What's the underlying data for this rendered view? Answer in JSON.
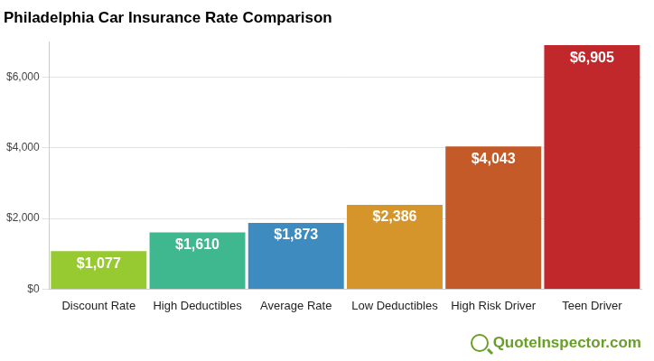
{
  "chart_data": {
    "type": "bar",
    "title": "Philadelphia Car Insurance Rate Comparison",
    "categories": [
      "Discount Rate",
      "High Deductibles",
      "Average Rate",
      "Low Deductibles",
      "High Risk Driver",
      "Teen Driver"
    ],
    "values": [
      1077,
      1610,
      1873,
      2386,
      4043,
      6905
    ],
    "value_labels": [
      "$1,077",
      "$1,610",
      "$1,873",
      "$2,386",
      "$4,043",
      "$6,905"
    ],
    "colors": [
      "#97c930",
      "#3fb88f",
      "#3e8cbf",
      "#d6952a",
      "#c45a28",
      "#c0282c"
    ],
    "ylim": [
      0,
      7000
    ],
    "yticks": [
      {
        "value": 0,
        "label": "$0"
      },
      {
        "value": 2000,
        "label": "$2,000"
      },
      {
        "value": 4000,
        "label": "$4,000"
      },
      {
        "value": 6000,
        "label": "$6,000"
      }
    ],
    "grid": true,
    "data_labels": true,
    "annotations": [
      "QuoteInspector.com"
    ]
  }
}
